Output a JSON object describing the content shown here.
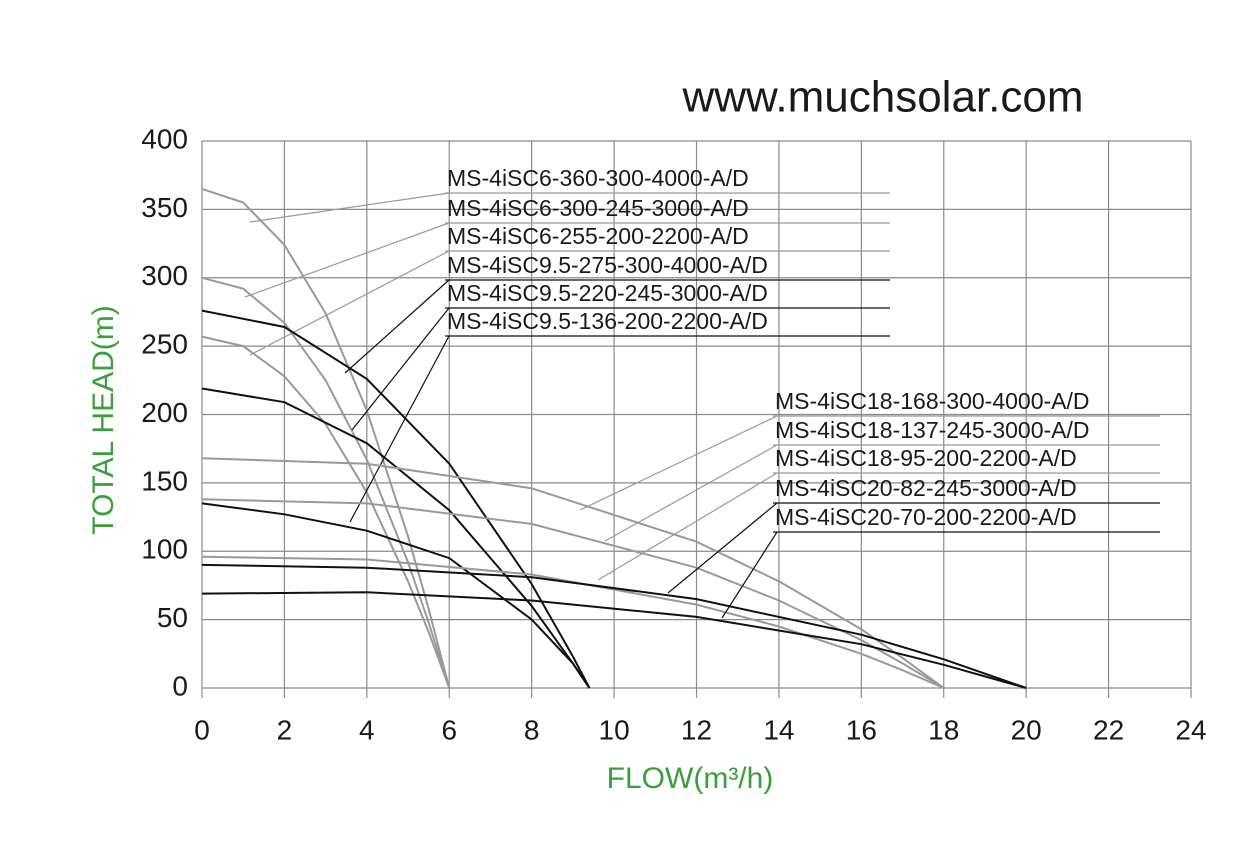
{
  "chart_data": {
    "type": "line",
    "watermark": "www.muchsolar.com",
    "x_label": "FLOW(m³/h)",
    "y_label": "TOTAL HEAD(m)",
    "xlim": [
      0,
      24
    ],
    "ylim": [
      0,
      400
    ],
    "xticks": [
      0,
      2,
      4,
      6,
      8,
      10,
      12,
      14,
      16,
      18,
      20,
      22,
      24
    ],
    "yticks": [
      0,
      50,
      100,
      150,
      200,
      250,
      300,
      350,
      400
    ],
    "grid": true,
    "series": [
      {
        "name": "MS-4iSC6-360-300-4000-A/D",
        "color": "#999999",
        "x": [
          0,
          1,
          2,
          3,
          4,
          5,
          5.5,
          6
        ],
        "values": [
          365,
          355,
          324,
          274,
          203,
          111,
          58,
          0
        ]
      },
      {
        "name": "MS-4iSC6-300-245-3000-A/D",
        "color": "#999999",
        "x": [
          0,
          1,
          2,
          3,
          4,
          5,
          5.5,
          6
        ],
        "values": [
          300,
          292,
          267,
          225,
          167,
          92,
          48,
          0
        ]
      },
      {
        "name": "MS-4iSC6-255-200-2200-A/D",
        "color": "#999999",
        "x": [
          0,
          1,
          2,
          3,
          4,
          5,
          5.5,
          6
        ],
        "values": [
          257,
          250,
          228,
          193,
          143,
          78,
          41,
          0
        ]
      },
      {
        "name": "MS-4iSC9.5-275-300-4000-A/D",
        "color": "#111111",
        "x": [
          0,
          2,
          4,
          6,
          8,
          9,
          9.4
        ],
        "values": [
          276,
          264,
          226,
          164,
          76,
          23,
          0
        ]
      },
      {
        "name": "MS-4iSC9.5-220-245-3000-A/D",
        "color": "#111111",
        "x": [
          0,
          2,
          4,
          6,
          8,
          9,
          9.4
        ],
        "values": [
          219,
          209,
          179,
          130,
          60,
          18,
          0
        ]
      },
      {
        "name": "MS-4iSC9.5-136-200-2200-A/D",
        "color": "#111111",
        "x": [
          0,
          2,
          4,
          6,
          8,
          9,
          9.4
        ],
        "values": [
          135,
          127,
          115,
          95,
          50,
          18,
          0
        ]
      },
      {
        "name": "MS-4iSC18-168-300-4000-A/D",
        "color": "#999999",
        "x": [
          0,
          4,
          8,
          12,
          14,
          16,
          17,
          18
        ],
        "values": [
          168,
          164,
          146,
          107,
          78,
          43,
          22,
          0
        ]
      },
      {
        "name": "MS-4iSC18-137-245-3000-A/D",
        "color": "#999999",
        "x": [
          0,
          4,
          8,
          12,
          14,
          16,
          17,
          18
        ],
        "values": [
          138,
          135,
          120,
          88,
          64,
          35,
          18,
          0
        ]
      },
      {
        "name": "MS-4iSC18-95-200-2200-A/D",
        "color": "#999999",
        "x": [
          0,
          4,
          8,
          12,
          14,
          16,
          17,
          18
        ],
        "values": [
          96,
          94,
          83,
          61,
          45,
          25,
          13,
          0
        ]
      },
      {
        "name": "MS-4iSC20-82-245-3000-A/D",
        "color": "#111111",
        "x": [
          0,
          4,
          8,
          12,
          16,
          18,
          20
        ],
        "values": [
          90,
          88,
          81,
          65,
          39,
          21,
          0
        ]
      },
      {
        "name": "MS-4iSC20-70-200-2200-A/D",
        "color": "#111111",
        "x": [
          0,
          4,
          8,
          12,
          16,
          18,
          20
        ],
        "values": [
          69,
          70,
          64,
          52,
          32,
          17,
          0
        ]
      }
    ]
  }
}
